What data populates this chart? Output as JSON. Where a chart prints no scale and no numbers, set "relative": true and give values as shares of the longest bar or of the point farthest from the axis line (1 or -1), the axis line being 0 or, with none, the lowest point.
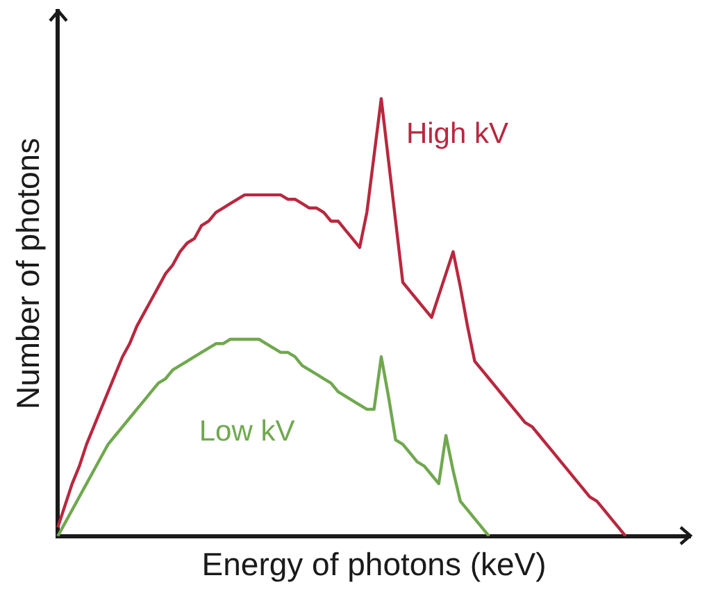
{
  "chart_data": {
    "type": "line",
    "relative": true,
    "xlabel": "Energy of photons (keV)",
    "ylabel": "Number of photons",
    "tick_labels": false,
    "grid": false,
    "legend": false,
    "marker": "none",
    "line_style": "solid",
    "categories": [
      null,
      null,
      null,
      null,
      null,
      null,
      null,
      null,
      null,
      null,
      null,
      null,
      null,
      null,
      null,
      null,
      null,
      null,
      null,
      null,
      null,
      null,
      null,
      null,
      null,
      null,
      null,
      null,
      null,
      null,
      null,
      null,
      null,
      null,
      null,
      null,
      null,
      null,
      null,
      null,
      null,
      null,
      null,
      null,
      null,
      null,
      null,
      null,
      null,
      null,
      null,
      null,
      null,
      null,
      null,
      null,
      null,
      null,
      null,
      null,
      null,
      null,
      null,
      null,
      null,
      null,
      null,
      null,
      null,
      null,
      null,
      null,
      null,
      null,
      null,
      null,
      null,
      null,
      null,
      null,
      null,
      null,
      null,
      null,
      null,
      null,
      null,
      null,
      null
    ],
    "series": [
      {
        "name": "High kV",
        "color": "#b8283f",
        "values": [
          0.02,
          0.07,
          0.12,
          0.16,
          0.21,
          0.25,
          0.29,
          0.33,
          0.37,
          0.41,
          0.44,
          0.48,
          0.51,
          0.54,
          0.57,
          0.6,
          0.62,
          0.65,
          0.67,
          0.68,
          0.71,
          0.72,
          0.74,
          0.75,
          0.76,
          0.77,
          0.78,
          0.78,
          0.78,
          0.78,
          0.78,
          0.78,
          0.77,
          0.77,
          0.76,
          0.75,
          0.75,
          0.74,
          0.72,
          0.72,
          0.7,
          0.68,
          0.66,
          0.74,
          0.87,
          1,
          0.86,
          0.72,
          0.58,
          0.56,
          0.54,
          0.52,
          0.5,
          0.55,
          0.6,
          0.65,
          0.57,
          0.48,
          0.4,
          0.38,
          0.36,
          0.34,
          0.32,
          0.3,
          0.28,
          0.26,
          0.25,
          0.23,
          0.21,
          0.19,
          0.17,
          0.15,
          0.13,
          0.11,
          0.09,
          0.08,
          0.06,
          0.04,
          0.02,
          0,
          null,
          null,
          null,
          null,
          null,
          null,
          null,
          null,
          null
        ]
      },
      {
        "name": "Low kV",
        "color": "#70a84e",
        "values": [
          0,
          0.03,
          0.06,
          0.09,
          0.12,
          0.15,
          0.18,
          0.21,
          0.23,
          0.25,
          0.27,
          0.29,
          0.31,
          0.33,
          0.35,
          0.36,
          0.38,
          0.39,
          0.4,
          0.41,
          0.42,
          0.43,
          0.44,
          0.44,
          0.45,
          0.45,
          0.45,
          0.45,
          0.45,
          0.44,
          0.43,
          0.42,
          0.42,
          0.41,
          0.39,
          0.38,
          0.37,
          0.36,
          0.35,
          0.33,
          0.32,
          0.31,
          0.3,
          0.29,
          0.29,
          0.41,
          0.32,
          0.22,
          0.21,
          0.19,
          0.17,
          0.16,
          0.14,
          0.12,
          0.23,
          0.15,
          0.08,
          0.06,
          0.04,
          0.02,
          0,
          null,
          null,
          null,
          null,
          null,
          null,
          null,
          null,
          null,
          null,
          null,
          null,
          null,
          null,
          null,
          null,
          null,
          null,
          null,
          null,
          null,
          null,
          null,
          null,
          null,
          null,
          null,
          null
        ]
      }
    ]
  }
}
